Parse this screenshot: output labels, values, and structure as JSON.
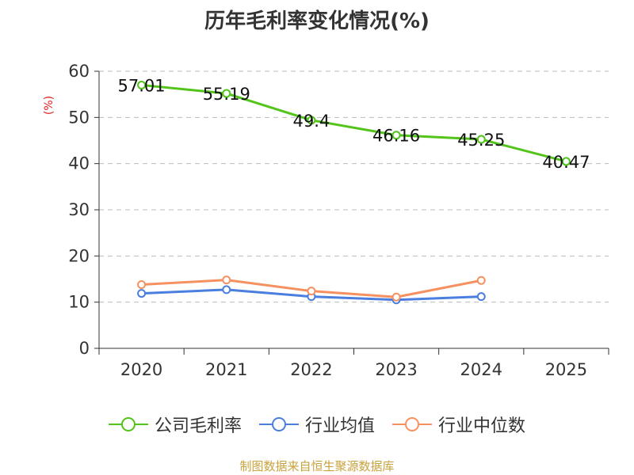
{
  "title": "历年毛利率变化情况(%)",
  "unit_label": "(%)",
  "source": "制图数据来自恒生聚源数据库",
  "chart_data": {
    "type": "line",
    "title": "历年毛利率变化情况(%)",
    "ylabel": "(%)",
    "categories": [
      "2020",
      "2021",
      "2022",
      "2023",
      "2024",
      "2025"
    ],
    "ylim": [
      0,
      60
    ],
    "yticks": [
      0,
      10,
      20,
      30,
      40,
      50,
      60
    ],
    "grid": true,
    "legend_position": "bottom",
    "series": [
      {
        "name": "公司毛利率",
        "color": "#52c41a",
        "values": [
          57.01,
          55.19,
          49.4,
          46.16,
          45.25,
          40.47
        ],
        "labels": [
          "57.01",
          "55.19",
          "49.4",
          "46.16",
          "45.25",
          "40.47"
        ]
      },
      {
        "name": "行业均值",
        "color": "#4a7fe0",
        "values": [
          11.9,
          12.7,
          11.2,
          10.5,
          11.2,
          null
        ]
      },
      {
        "name": "行业中位数",
        "color": "#f59160",
        "values": [
          13.8,
          14.8,
          12.4,
          11.1,
          14.7,
          null
        ]
      }
    ]
  }
}
